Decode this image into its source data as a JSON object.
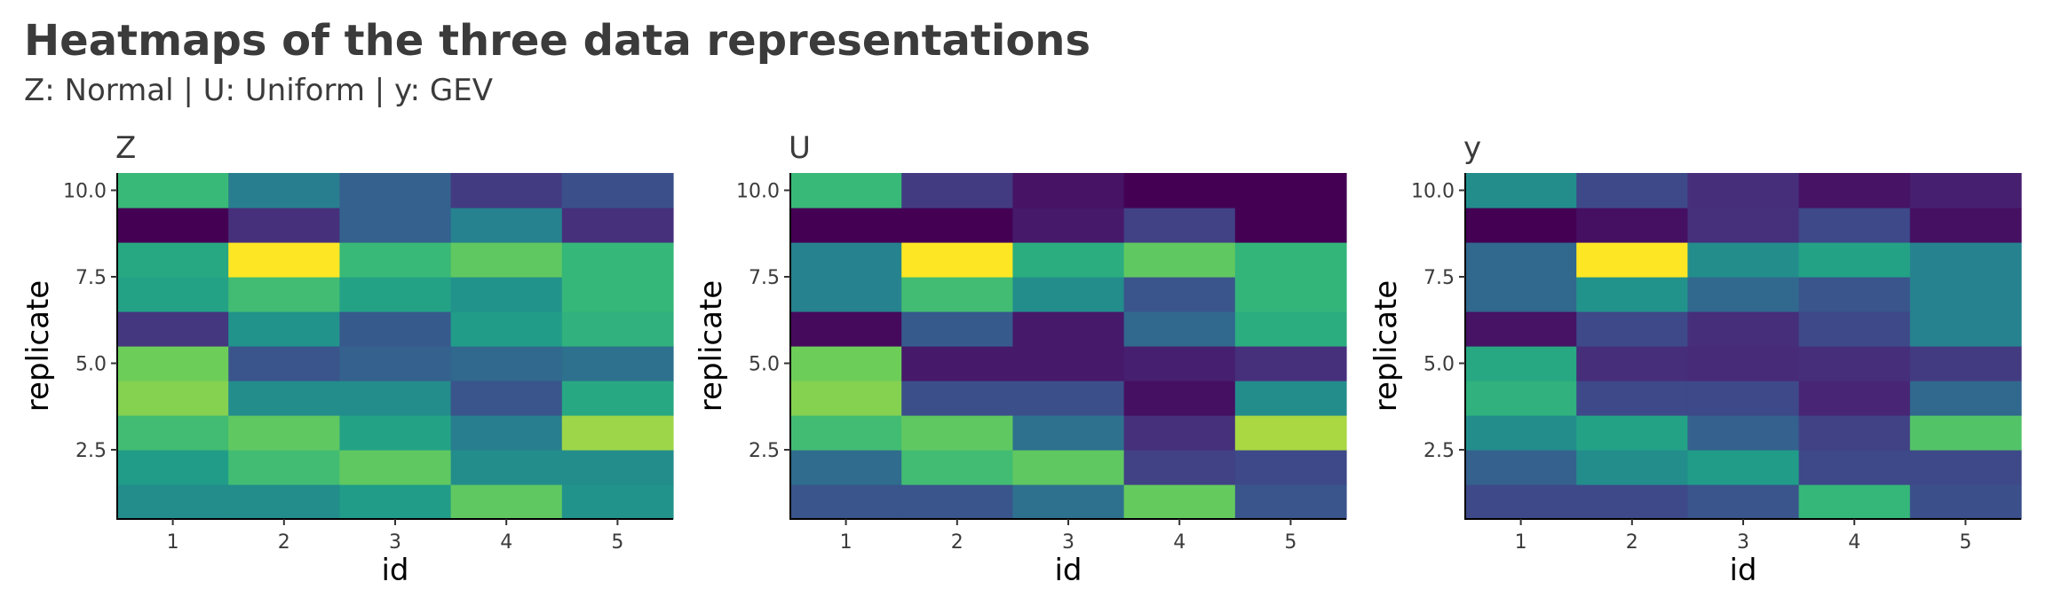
{
  "title": "Heatmaps of the three data representations",
  "subtitle": "Z: Normal | U: Uniform | y: GEV",
  "chart_data": [
    {
      "type": "heatmap",
      "title": "Z",
      "xlabel": "id",
      "ylabel": "replicate",
      "x": [
        1,
        2,
        3,
        4,
        5
      ],
      "y": [
        1,
        2,
        3,
        4,
        5,
        6,
        7,
        8,
        9,
        10
      ],
      "x_ticks": [
        "1",
        "2",
        "3",
        "4",
        "5"
      ],
      "y_ticks": [
        "2.5",
        "5.0",
        "7.5",
        "10.0"
      ],
      "values": [
        [
          0.55,
          0.55,
          0.62,
          0.85,
          0.58
        ],
        [
          0.62,
          0.78,
          0.85,
          0.55,
          0.55
        ],
        [
          0.78,
          0.85,
          0.65,
          0.48,
          0.92
        ],
        [
          0.9,
          0.55,
          0.55,
          0.3,
          0.68
        ],
        [
          0.88,
          0.3,
          0.35,
          0.38,
          0.42
        ],
        [
          0.18,
          0.58,
          0.32,
          0.62,
          0.72
        ],
        [
          0.65,
          0.78,
          0.65,
          0.58,
          0.75
        ],
        [
          0.68,
          1.0,
          0.76,
          0.85,
          0.75
        ],
        [
          0.0,
          0.16,
          0.35,
          0.5,
          0.16
        ],
        [
          0.76,
          0.48,
          0.35,
          0.2,
          0.28
        ]
      ],
      "colormap": "viridis"
    },
    {
      "type": "heatmap",
      "title": "U",
      "xlabel": "id",
      "ylabel": "replicate",
      "x": [
        1,
        2,
        3,
        4,
        5
      ],
      "y": [
        1,
        2,
        3,
        4,
        5,
        6,
        7,
        8,
        9,
        10
      ],
      "x_ticks": [
        "1",
        "2",
        "3",
        "4",
        "5"
      ],
      "y_ticks": [
        "2.5",
        "5.0",
        "7.5",
        "10.0"
      ],
      "values": [
        [
          0.3,
          0.3,
          0.42,
          0.86,
          0.3
        ],
        [
          0.4,
          0.78,
          0.85,
          0.22,
          0.25
        ],
        [
          0.78,
          0.85,
          0.42,
          0.16,
          0.93
        ],
        [
          0.9,
          0.28,
          0.28,
          0.05,
          0.55
        ],
        [
          0.88,
          0.08,
          0.08,
          0.1,
          0.16
        ],
        [
          0.03,
          0.32,
          0.08,
          0.38,
          0.7
        ],
        [
          0.5,
          0.78,
          0.55,
          0.3,
          0.74
        ],
        [
          0.5,
          1.0,
          0.7,
          0.85,
          0.74
        ],
        [
          0.0,
          0.0,
          0.08,
          0.22,
          0.0
        ],
        [
          0.76,
          0.2,
          0.06,
          0.0,
          0.0
        ]
      ],
      "colormap": "viridis"
    },
    {
      "type": "heatmap",
      "title": "y",
      "xlabel": "id",
      "ylabel": "replicate",
      "x": [
        1,
        2,
        3,
        4,
        5
      ],
      "y": [
        1,
        2,
        3,
        4,
        5,
        6,
        7,
        8,
        9,
        10
      ],
      "x_ticks": [
        "1",
        "2",
        "3",
        "4",
        "5"
      ],
      "y_ticks": [
        "2.5",
        "5.0",
        "7.5",
        "10.0"
      ],
      "values": [
        [
          0.25,
          0.25,
          0.3,
          0.75,
          0.28
        ],
        [
          0.35,
          0.55,
          0.62,
          0.25,
          0.25
        ],
        [
          0.55,
          0.65,
          0.35,
          0.22,
          0.82
        ],
        [
          0.72,
          0.25,
          0.25,
          0.12,
          0.38
        ],
        [
          0.68,
          0.15,
          0.14,
          0.15,
          0.2
        ],
        [
          0.06,
          0.25,
          0.15,
          0.25,
          0.5
        ],
        [
          0.38,
          0.58,
          0.38,
          0.3,
          0.5
        ],
        [
          0.38,
          1.0,
          0.55,
          0.65,
          0.5
        ],
        [
          0.0,
          0.05,
          0.16,
          0.25,
          0.05
        ],
        [
          0.55,
          0.25,
          0.15,
          0.06,
          0.1
        ]
      ],
      "colormap": "viridis"
    }
  ]
}
